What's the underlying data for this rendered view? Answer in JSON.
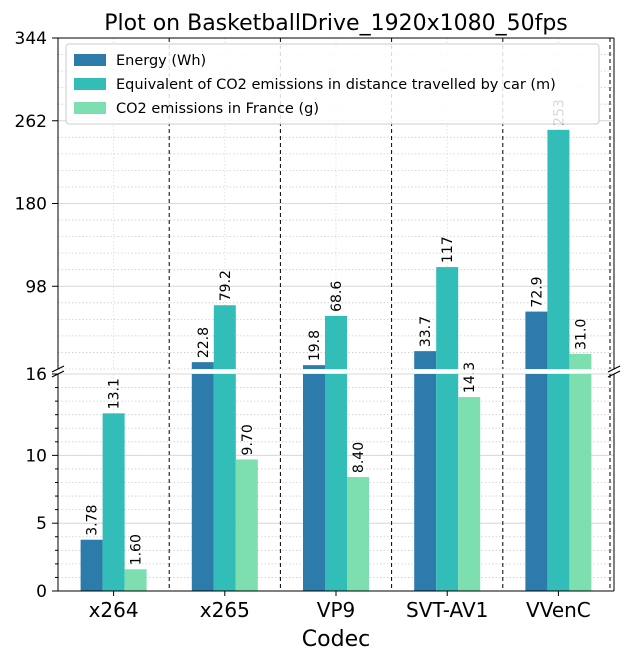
{
  "chart_data": {
    "type": "bar",
    "title": "Plot on BasketballDrive_1920x1080_50fps",
    "xlabel": "Codec",
    "ylabel": "",
    "categories": [
      "x264",
      "x265",
      "VP9",
      "SVT-AV1",
      "VVenC"
    ],
    "series": [
      {
        "name": "Energy (Wh)",
        "color": "#2c7bab",
        "values": [
          3.78,
          22.8,
          19.8,
          33.7,
          72.9
        ],
        "labels": [
          "3.78",
          "22.8",
          "19.8",
          "33.7",
          "72.9"
        ]
      },
      {
        "name": "Equivalent of CO2 emissions in distance travelled by car (m)",
        "color": "#33bdb8",
        "values": [
          13.1,
          79.2,
          68.6,
          117,
          253
        ],
        "labels": [
          "13.1",
          "79.2",
          "68.6",
          "117",
          "253"
        ]
      },
      {
        "name": "CO2 emissions in France (g)",
        "color": "#7ddeb0",
        "values": [
          1.6,
          9.7,
          8.4,
          14.3,
          31.0
        ],
        "labels": [
          "1.60",
          "9.70",
          "8.40",
          "14.3",
          "31.0"
        ]
      }
    ],
    "broken_axis": true,
    "lower_axis": {
      "ylim": [
        0,
        16
      ],
      "ticks": [
        0,
        5,
        10,
        16
      ],
      "tick_labels": [
        "0",
        "5",
        "10",
        "16"
      ]
    },
    "upper_axis": {
      "ylim": [
        16,
        344
      ],
      "ticks": [
        98,
        180,
        262,
        344
      ],
      "tick_labels": [
        "98",
        "180",
        "262",
        "344"
      ]
    },
    "grid": true,
    "legend_position": "top-left"
  }
}
